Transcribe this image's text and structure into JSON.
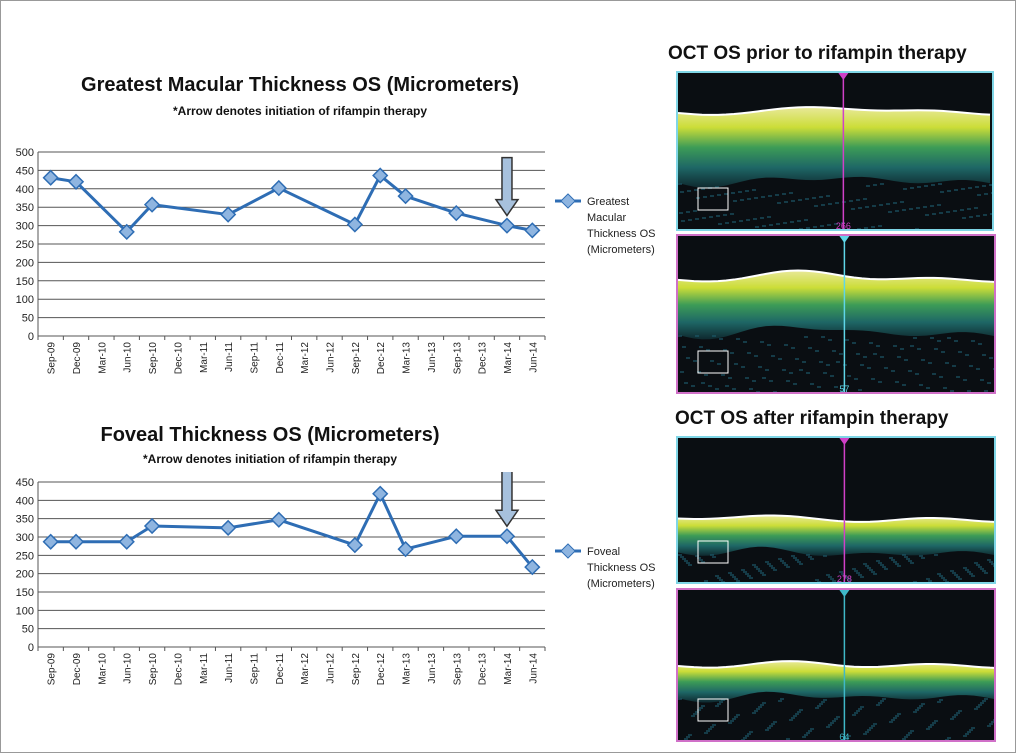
{
  "chart_data": [
    {
      "type": "line",
      "title": "Greatest Macular Thickness OS (Micrometers)",
      "subtitle": "*Arrow denotes initiation of rifampin therapy",
      "categories": [
        "Sep-09",
        "Dec-09",
        "Mar-10",
        "Jun-10",
        "Sep-10",
        "Dec-10",
        "Mar-11",
        "Jun-11",
        "Sep-11",
        "Dec-11",
        "Mar-12",
        "Jun-12",
        "Sep-12",
        "Dec-12",
        "Mar-13",
        "Jun-13",
        "Sep-13",
        "Dec-13",
        "Mar-14",
        "Jun-14"
      ],
      "series": [
        {
          "name": "Greatest Macular Thickness OS (Micrometers)",
          "points": [
            [
              0,
              430
            ],
            [
              1,
              419
            ],
            [
              3,
              283
            ],
            [
              4,
              357
            ],
            [
              7,
              330
            ],
            [
              9,
              402
            ],
            [
              12,
              303
            ],
            [
              13,
              436
            ],
            [
              14,
              380
            ],
            [
              16,
              334
            ],
            [
              18,
              300
            ],
            [
              19,
              287
            ]
          ]
        }
      ],
      "yticks": [
        0,
        50,
        100,
        150,
        200,
        250,
        300,
        350,
        400,
        450,
        500
      ],
      "ylim": [
        0,
        500
      ],
      "arrow_category": "Mar-14",
      "legend_lines": [
        "Greatest",
        "Macular",
        "Thickness OS",
        "(Micrometers)"
      ],
      "color": "#2e6db4"
    },
    {
      "type": "line",
      "title": "Foveal Thickness OS (Micrometers)",
      "subtitle": "*Arrow denotes initiation of rifampin therapy",
      "categories": [
        "Sep-09",
        "Dec-09",
        "Mar-10",
        "Jun-10",
        "Sep-10",
        "Dec-10",
        "Mar-11",
        "Jun-11",
        "Sep-11",
        "Dec-11",
        "Mar-12",
        "Jun-12",
        "Sep-12",
        "Dec-12",
        "Mar-13",
        "Jun-13",
        "Sep-13",
        "Dec-13",
        "Mar-14",
        "Jun-14"
      ],
      "series": [
        {
          "name": "Foveal Thickness OS (Micrometers)",
          "points": [
            [
              0,
              287
            ],
            [
              1,
              287
            ],
            [
              3,
              287
            ],
            [
              4,
              330
            ],
            [
              7,
              325
            ],
            [
              9,
              347
            ],
            [
              12,
              278
            ],
            [
              13,
              418
            ],
            [
              14,
              267
            ],
            [
              16,
              302
            ],
            [
              18,
              302
            ],
            [
              19,
              218
            ]
          ]
        }
      ],
      "yticks": [
        0,
        50,
        100,
        150,
        200,
        250,
        300,
        350,
        400,
        450
      ],
      "ylim": [
        0,
        450
      ],
      "arrow_category": "Mar-14",
      "legend_lines": [
        "Foveal",
        "Thickness OS",
        "(Micrometers)"
      ],
      "color": "#2e6db4"
    }
  ],
  "oct": {
    "before_title": "OCT OS prior to rifampin therapy",
    "after_title": "OCT OS after rifampin therapy",
    "scans": [
      {
        "marker_value": "266",
        "line_color": "#d040c8",
        "border_color": "#7fd6e6"
      },
      {
        "marker_value": "57",
        "line_color": "#5fd6e8",
        "border_color": "#d070c8"
      },
      {
        "marker_value": "278",
        "line_color": "#d040c8",
        "border_color": "#7fd6e6"
      },
      {
        "marker_value": "64",
        "line_color": "#3fb8c8",
        "border_color": "#d070c8"
      }
    ]
  }
}
